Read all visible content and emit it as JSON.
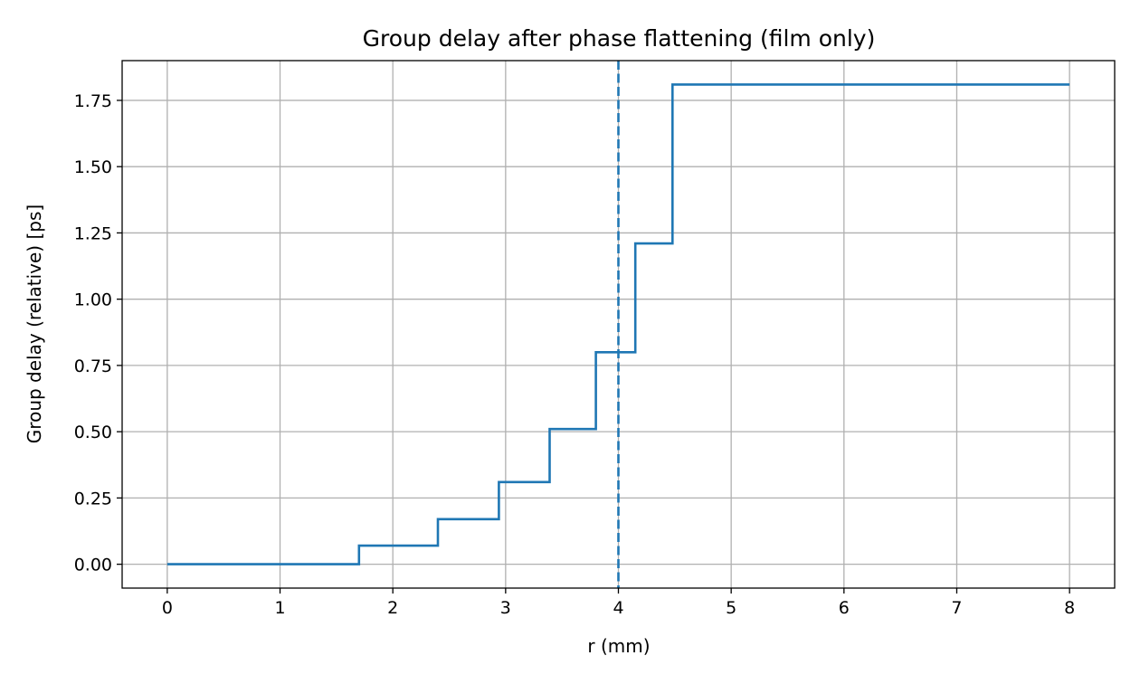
{
  "chart_data": {
    "type": "line",
    "title": "Group delay after phase flattening (film only)",
    "xlabel": "r (mm)",
    "ylabel": "Group delay (relative) [ps]",
    "xlim": [
      -0.4,
      8.4
    ],
    "ylim": [
      -0.09,
      1.9
    ],
    "xticks": [
      0,
      1,
      2,
      3,
      4,
      5,
      6,
      7,
      8
    ],
    "xtick_labels": [
      "0",
      "1",
      "2",
      "3",
      "4",
      "5",
      "6",
      "7",
      "8"
    ],
    "yticks": [
      0.0,
      0.25,
      0.5,
      0.75,
      1.0,
      1.25,
      1.5,
      1.75
    ],
    "ytick_labels": [
      "0.00",
      "0.25",
      "0.50",
      "0.75",
      "1.00",
      "1.25",
      "1.50",
      "1.75"
    ],
    "grid": true,
    "series": [
      {
        "style": "step",
        "color": "#1f77b4",
        "x": [
          0,
          1.7,
          1.7,
          2.4,
          2.4,
          2.94,
          2.94,
          3.39,
          3.39,
          3.8,
          3.8,
          4.15,
          4.15,
          4.48,
          4.48,
          8.0
        ],
        "y": [
          0.0,
          0.0,
          0.07,
          0.07,
          0.17,
          0.17,
          0.31,
          0.31,
          0.51,
          0.51,
          0.8,
          0.8,
          1.21,
          1.21,
          1.81,
          1.81
        ]
      }
    ],
    "vlines": [
      {
        "x": 4.0,
        "style": "dashed",
        "color": "#1f77b4"
      }
    ]
  }
}
